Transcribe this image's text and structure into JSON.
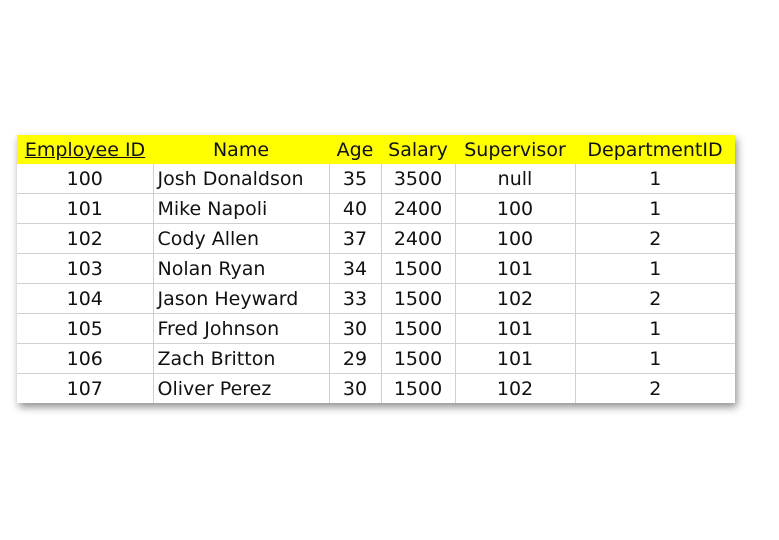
{
  "header_color": "#ffff00",
  "columns": [
    {
      "label": "Employee ID",
      "underlined": true
    },
    {
      "label": "Name",
      "underlined": false
    },
    {
      "label": "Age",
      "underlined": false
    },
    {
      "label": "Salary",
      "underlined": false
    },
    {
      "label": "Supervisor",
      "underlined": false
    },
    {
      "label": "DepartmentID",
      "underlined": false
    }
  ],
  "rows": [
    [
      "100",
      "Josh Donaldson",
      "35",
      "3500",
      "null",
      "1"
    ],
    [
      "101",
      "Mike Napoli",
      "40",
      "2400",
      "100",
      "1"
    ],
    [
      "102",
      "Cody Allen",
      "37",
      "2400",
      "100",
      "2"
    ],
    [
      "103",
      "Nolan Ryan",
      "34",
      "1500",
      "101",
      "1"
    ],
    [
      "104",
      "Jason Heyward",
      "33",
      "1500",
      "102",
      "2"
    ],
    [
      "105",
      "Fred Johnson",
      "30",
      "1500",
      "101",
      "1"
    ],
    [
      "106",
      "Zach Britton",
      "29",
      "1500",
      "101",
      "1"
    ],
    [
      "107",
      "Oliver Perez",
      "30",
      "1500",
      "102",
      "2"
    ]
  ]
}
